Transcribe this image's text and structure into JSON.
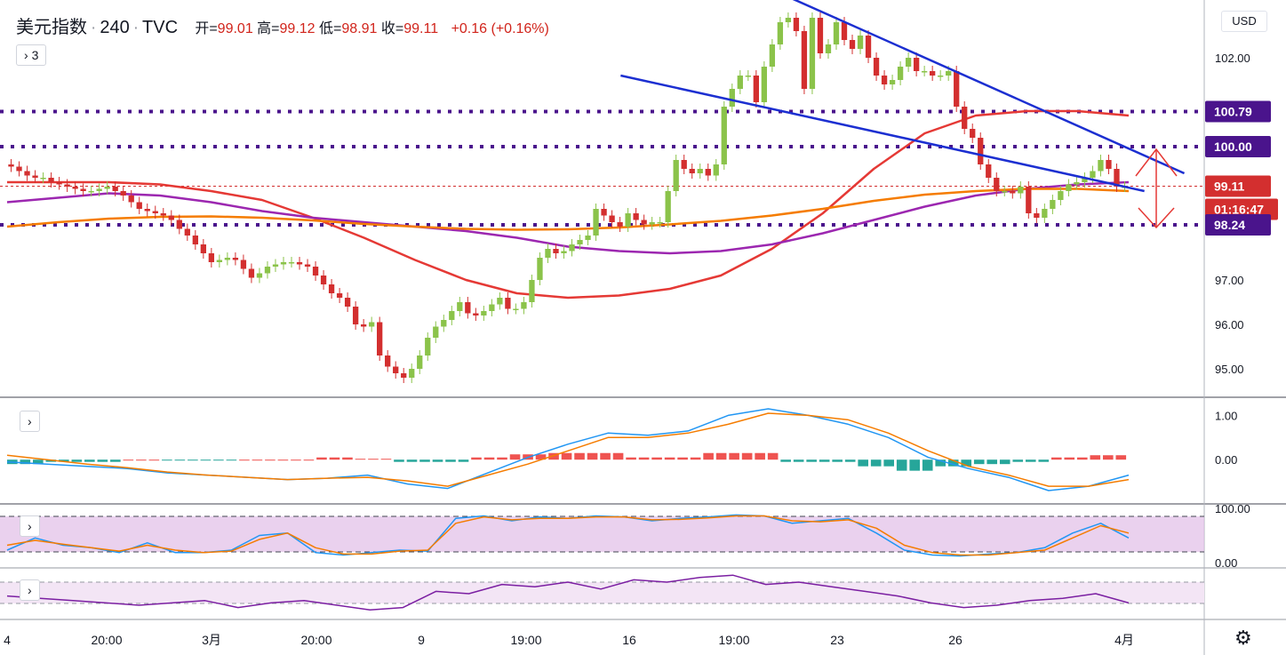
{
  "header": {
    "symbol": "美元指数",
    "interval": "240",
    "source": "TVC",
    "open_label": "开=",
    "open": "99.01",
    "high_label": "高=",
    "high": "99.12",
    "low_label": "低=",
    "low": "98.91",
    "close_label": "收=",
    "close": "99.11",
    "change": "+0.16 (+0.16%)",
    "indicators_toggle": "3"
  },
  "currency_button": "USD",
  "settings_icon": "gear-icon",
  "colors": {
    "up": "#26a69a",
    "up_candle": "#8bc34a",
    "down": "#d32f2f",
    "ma_red": "#e53935",
    "ma_purple": "#9c27b0",
    "ma_orange": "#f57c00",
    "channel": "#1c2fd1",
    "level_line": "#4a148c",
    "arrow": "#e53935",
    "macd_fast": "#2196f3",
    "macd_slow": "#f57c00",
    "rsi_band": "#e1bee7",
    "cci_line": "#7b1fa2"
  },
  "chart_data": [
    {
      "type": "candlestick",
      "title": "",
      "y_axis_ticks": [
        "102.00",
        "97.00",
        "96.00",
        "95.00"
      ],
      "ylim": [
        94.5,
        103.2
      ],
      "price_tags": [
        {
          "label": "100.79",
          "kind": "level"
        },
        {
          "label": "100.00",
          "kind": "level"
        },
        {
          "label": "99.11",
          "kind": "last"
        },
        {
          "label": "01:16:47",
          "kind": "countdown"
        },
        {
          "label": "98.24",
          "kind": "level"
        }
      ],
      "horizontal_levels": [
        100.79,
        100.0,
        98.24
      ],
      "close_line": 99.11,
      "x_tick_labels": [
        "4",
        "20:00",
        "3月",
        "20:00",
        "9",
        "19:00",
        "16",
        "19:00",
        "23",
        "26",
        "4月"
      ],
      "closes": [
        99.55,
        99.45,
        99.35,
        99.3,
        99.3,
        99.2,
        99.15,
        99.1,
        99.05,
        99.0,
        99.0,
        99.05,
        99.1,
        99.0,
        98.9,
        98.75,
        98.6,
        98.55,
        98.5,
        98.45,
        98.35,
        98.15,
        98.0,
        97.8,
        97.6,
        97.4,
        97.45,
        97.5,
        97.45,
        97.25,
        97.05,
        97.15,
        97.3,
        97.35,
        97.4,
        97.4,
        97.35,
        97.3,
        97.1,
        96.9,
        96.7,
        96.6,
        96.4,
        96.0,
        95.95,
        96.05,
        95.3,
        95.05,
        94.9,
        94.8,
        95.0,
        95.3,
        95.7,
        95.95,
        96.1,
        96.3,
        96.5,
        96.25,
        96.2,
        96.3,
        96.45,
        96.6,
        96.35,
        96.35,
        96.5,
        97.0,
        97.5,
        97.7,
        97.6,
        97.65,
        97.8,
        97.9,
        98.0,
        98.6,
        98.45,
        98.3,
        98.2,
        98.5,
        98.35,
        98.25,
        98.3,
        98.3,
        99.0,
        99.7,
        99.5,
        99.4,
        99.5,
        99.35,
        99.6,
        100.9,
        101.3,
        101.6,
        101.6,
        101.0,
        101.8,
        102.3,
        102.8,
        102.9,
        102.6,
        101.3,
        102.9,
        102.1,
        102.3,
        102.8,
        102.4,
        102.2,
        102.5,
        102.0,
        101.6,
        101.4,
        101.5,
        101.8,
        102.0,
        101.7,
        101.7,
        101.6,
        101.6,
        101.7,
        100.9,
        100.4,
        100.2,
        99.6,
        99.3,
        99.0,
        99.0,
        98.95,
        99.1,
        98.5,
        98.4,
        98.6,
        98.8,
        99.0,
        99.15,
        99.2,
        99.3,
        99.45,
        99.7,
        99.5,
        99.1,
        99.1
      ],
      "series": [
        {
          "name": "",
          "color": "#e53935",
          "values": [
            99.2,
            99.2,
            99.2,
            99.15,
            99.0,
            98.8,
            98.4,
            97.95,
            97.45,
            97.0,
            96.7,
            96.6,
            96.65,
            96.8,
            97.1,
            97.7,
            98.5,
            99.5,
            100.3,
            100.7,
            100.8,
            100.8,
            100.7
          ]
        },
        {
          "name": "",
          "color": "#9c27b0",
          "values": [
            98.75,
            98.85,
            98.95,
            98.9,
            98.75,
            98.55,
            98.4,
            98.3,
            98.2,
            98.1,
            97.95,
            97.75,
            97.65,
            97.6,
            97.65,
            97.8,
            98.05,
            98.35,
            98.65,
            98.9,
            99.05,
            99.15,
            99.2
          ]
        },
        {
          "name": "",
          "color": "#f57c00",
          "values": [
            98.2,
            98.3,
            98.38,
            98.42,
            98.43,
            98.4,
            98.34,
            98.26,
            98.2,
            98.15,
            98.13,
            98.14,
            98.18,
            98.25,
            98.33,
            98.45,
            98.6,
            98.78,
            98.92,
            99.0,
            99.05,
            99.05,
            99.0
          ]
        }
      ],
      "trend_channel": [
        {
          "name": "",
          "from": {
            "x": 123,
            "y": 101.6
          },
          "to": {
            "x": 228,
            "y": 99.0
          }
        },
        {
          "name": "",
          "from": {
            "x": 156,
            "y": 103.4
          },
          "to": {
            "x": 236,
            "y": 99.4
          }
        }
      ]
    },
    {
      "type": "line",
      "title": "",
      "y_axis_ticks": [
        "1.00",
        "0.00"
      ],
      "ylim": [
        -0.9,
        1.25
      ],
      "series": [
        {
          "name": "",
          "color": "#2196f3",
          "values": [
            -0.05,
            -0.1,
            -0.15,
            -0.2,
            -0.3,
            -0.35,
            -0.4,
            -0.45,
            -0.42,
            -0.35,
            -0.55,
            -0.65,
            -0.3,
            0.05,
            0.35,
            0.6,
            0.55,
            0.65,
            1.0,
            1.15,
            1.0,
            0.8,
            0.5,
            0.05,
            -0.2,
            -0.4,
            -0.7,
            -0.6,
            -0.35
          ]
        },
        {
          "name": "",
          "color": "#f57c00",
          "values": [
            0.1,
            0.0,
            -0.1,
            -0.18,
            -0.28,
            -0.35,
            -0.4,
            -0.45,
            -0.42,
            -0.4,
            -0.48,
            -0.6,
            -0.35,
            -0.1,
            0.2,
            0.5,
            0.5,
            0.6,
            0.8,
            1.05,
            1.0,
            0.9,
            0.6,
            0.2,
            -0.15,
            -0.35,
            -0.6,
            -0.6,
            -0.45
          ]
        },
        {
          "name": "",
          "color": "#26a69a",
          "values": [
            -0.1,
            -0.05,
            -0.05,
            0.0,
            -0.02,
            -0.02,
            0.0,
            0.0,
            0.05,
            0.02,
            -0.05,
            -0.05,
            0.05,
            0.12,
            0.15,
            0.15,
            0.05,
            0.05,
            0.15,
            0.15,
            -0.05,
            -0.05,
            -0.15,
            -0.25,
            -0.15,
            -0.1,
            -0.05,
            0.05,
            0.1
          ]
        }
      ]
    },
    {
      "type": "line",
      "title": "",
      "y_axis_ticks": [
        "100.00",
        "0.00"
      ],
      "ylim": [
        0,
        100
      ],
      "series": [
        {
          "name": "",
          "color": "#2196f3",
          "values": [
            20,
            45,
            30,
            25,
            15,
            35,
            15,
            15,
            20,
            50,
            55,
            15,
            10,
            15,
            20,
            18,
            85,
            90,
            80,
            88,
            85,
            90,
            88,
            80,
            85,
            88,
            92,
            90,
            75,
            80,
            85,
            55,
            20,
            10,
            8,
            12,
            15,
            25,
            55,
            75,
            45
          ]
        },
        {
          "name": "",
          "color": "#f57c00",
          "values": [
            30,
            40,
            32,
            25,
            18,
            30,
            20,
            15,
            18,
            42,
            55,
            25,
            12,
            12,
            18,
            20,
            75,
            88,
            82,
            85,
            85,
            88,
            88,
            82,
            83,
            86,
            90,
            90,
            80,
            78,
            82,
            65,
            30,
            15,
            10,
            10,
            15,
            20,
            45,
            70,
            55
          ]
        }
      ]
    },
    {
      "type": "line",
      "title": "",
      "y_axis_ticks": [],
      "ylim": [
        0,
        100
      ],
      "series": [
        {
          "name": "",
          "color": "#7b1fa2",
          "values": [
            45,
            40,
            35,
            30,
            25,
            30,
            35,
            20,
            30,
            35,
            25,
            15,
            20,
            55,
            50,
            70,
            65,
            75,
            60,
            80,
            75,
            85,
            90,
            70,
            75,
            65,
            55,
            45,
            30,
            20,
            25,
            35,
            40,
            50,
            30
          ]
        }
      ]
    }
  ]
}
